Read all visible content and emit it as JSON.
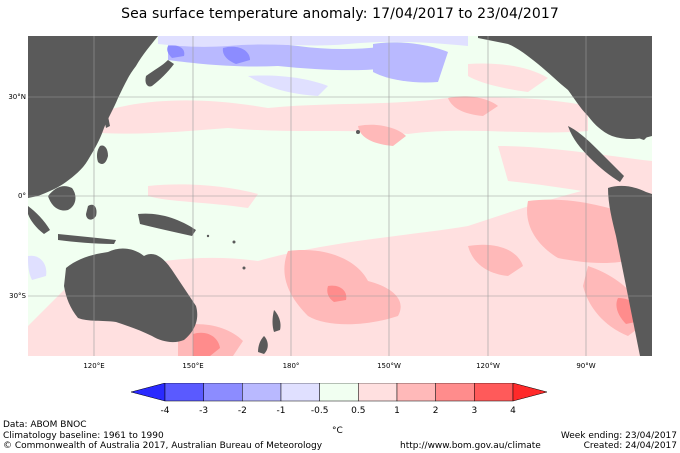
{
  "title": "Sea surface temperature anomaly: 17/04/2017 to 23/04/2017",
  "map": {
    "latitude_labels": [
      "30°N",
      "0°",
      "30°S"
    ],
    "longitude_labels": [
      "120°E",
      "150°E",
      "180°",
      "150°W",
      "120°W",
      "90°W"
    ],
    "land_color": "#5a5a5a",
    "grid_color": "#9a9a9a"
  },
  "legend": {
    "tick_labels": [
      "-4",
      "-3",
      "-2",
      "-1",
      "-0.5",
      "0.5",
      "1",
      "2",
      "3",
      "4"
    ],
    "unit": "°C",
    "colors": [
      "#2a2aff",
      "#5a5aff",
      "#8c8cff",
      "#b9b9ff",
      "#e0e0ff",
      "#f1fff1",
      "#ffe0e0",
      "#ffb9b9",
      "#ff8c8c",
      "#ff5a5a",
      "#ff2a2a"
    ]
  },
  "footer": {
    "data_source": "Data: ABOM BNOC",
    "baseline": "Climatology baseline: 1961 to 1990",
    "copyright": "© Commonwealth of Australia 2017, Australian Bureau of Meteorology",
    "url": "http://www.bom.gov.au/climate",
    "week_ending": "Week ending: 23/04/2017",
    "created": "Created: 24/04/2017"
  }
}
